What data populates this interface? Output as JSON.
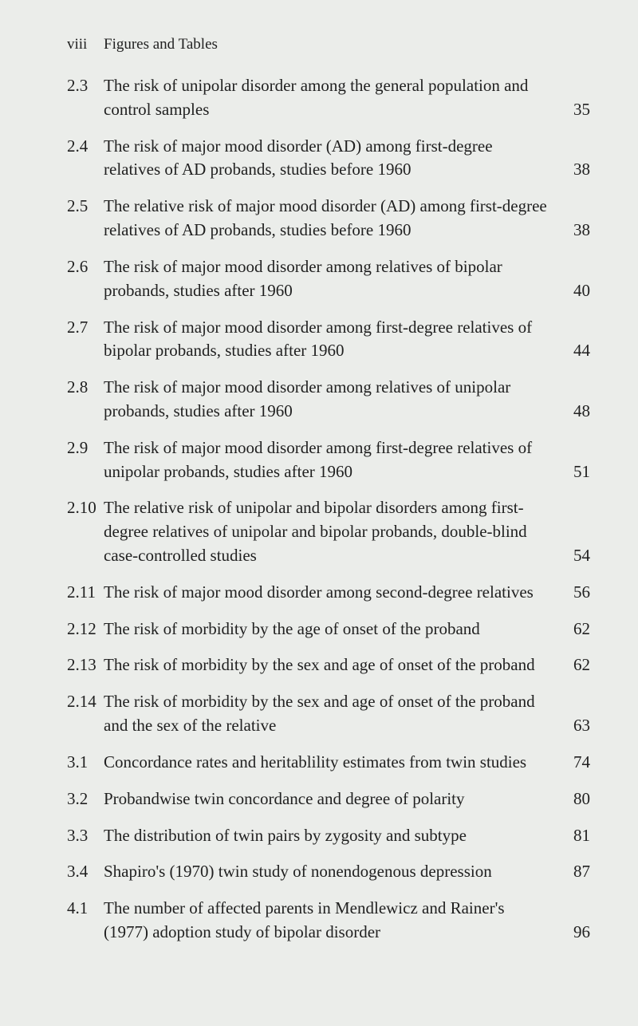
{
  "header": {
    "page_num": "viii",
    "title": "Figures and Tables"
  },
  "entries": [
    {
      "num": "2.3",
      "text": "The risk of unipolar disorder among the general population and control samples",
      "page": "35"
    },
    {
      "num": "2.4",
      "text": "The risk of major mood disorder (AD) among first-degree relatives of AD probands, studies before 1960",
      "page": "38"
    },
    {
      "num": "2.5",
      "text": "The relative risk of major mood disorder (AD) among first-degree relatives of AD probands, studies before 1960",
      "page": "38"
    },
    {
      "num": "2.6",
      "text": "The risk of major mood disorder among relatives of bipolar probands, studies after 1960",
      "page": "40"
    },
    {
      "num": "2.7",
      "text": "The risk of major mood disorder among first-degree relatives of bipolar probands, studies after 1960",
      "page": "44"
    },
    {
      "num": "2.8",
      "text": "The risk of major mood disorder among relatives of unipolar probands, studies after 1960",
      "page": "48"
    },
    {
      "num": "2.9",
      "text": "The risk of major mood disorder among first-degree relatives of unipolar probands, studies after 1960",
      "page": "51"
    },
    {
      "num": "2.10",
      "text": "The relative risk of unipolar and bipolar disorders among first-degree relatives of unipolar and bipolar probands, double-blind case-controlled studies",
      "page": "54"
    },
    {
      "num": "2.11",
      "text": "The risk of major mood disorder among second-degree relatives",
      "page": "56"
    },
    {
      "num": "2.12",
      "text": "The risk of morbidity by the age of onset of the proband",
      "page": "62"
    },
    {
      "num": "2.13",
      "text": "The risk of morbidity by the sex and age of onset of the proband",
      "page": "62"
    },
    {
      "num": "2.14",
      "text": "The risk of morbidity by the sex and age of onset of the proband and the sex of the relative",
      "page": "63"
    },
    {
      "num": "3.1",
      "text": "Concordance rates and heritablility estimates from twin studies",
      "page": "74"
    },
    {
      "num": "3.2",
      "text": "Probandwise twin concordance and degree of polarity",
      "page": "80"
    },
    {
      "num": "3.3",
      "text": "The distribution of twin pairs by zygosity and subtype",
      "page": "81"
    },
    {
      "num": "3.4",
      "text": "Shapiro's (1970) twin study of nonendogenous depression",
      "page": "87"
    },
    {
      "num": "4.1",
      "text": "The number of affected parents in Mendlewicz and Rainer's (1977) adoption study of bipolar disorder",
      "page": "96"
    }
  ]
}
